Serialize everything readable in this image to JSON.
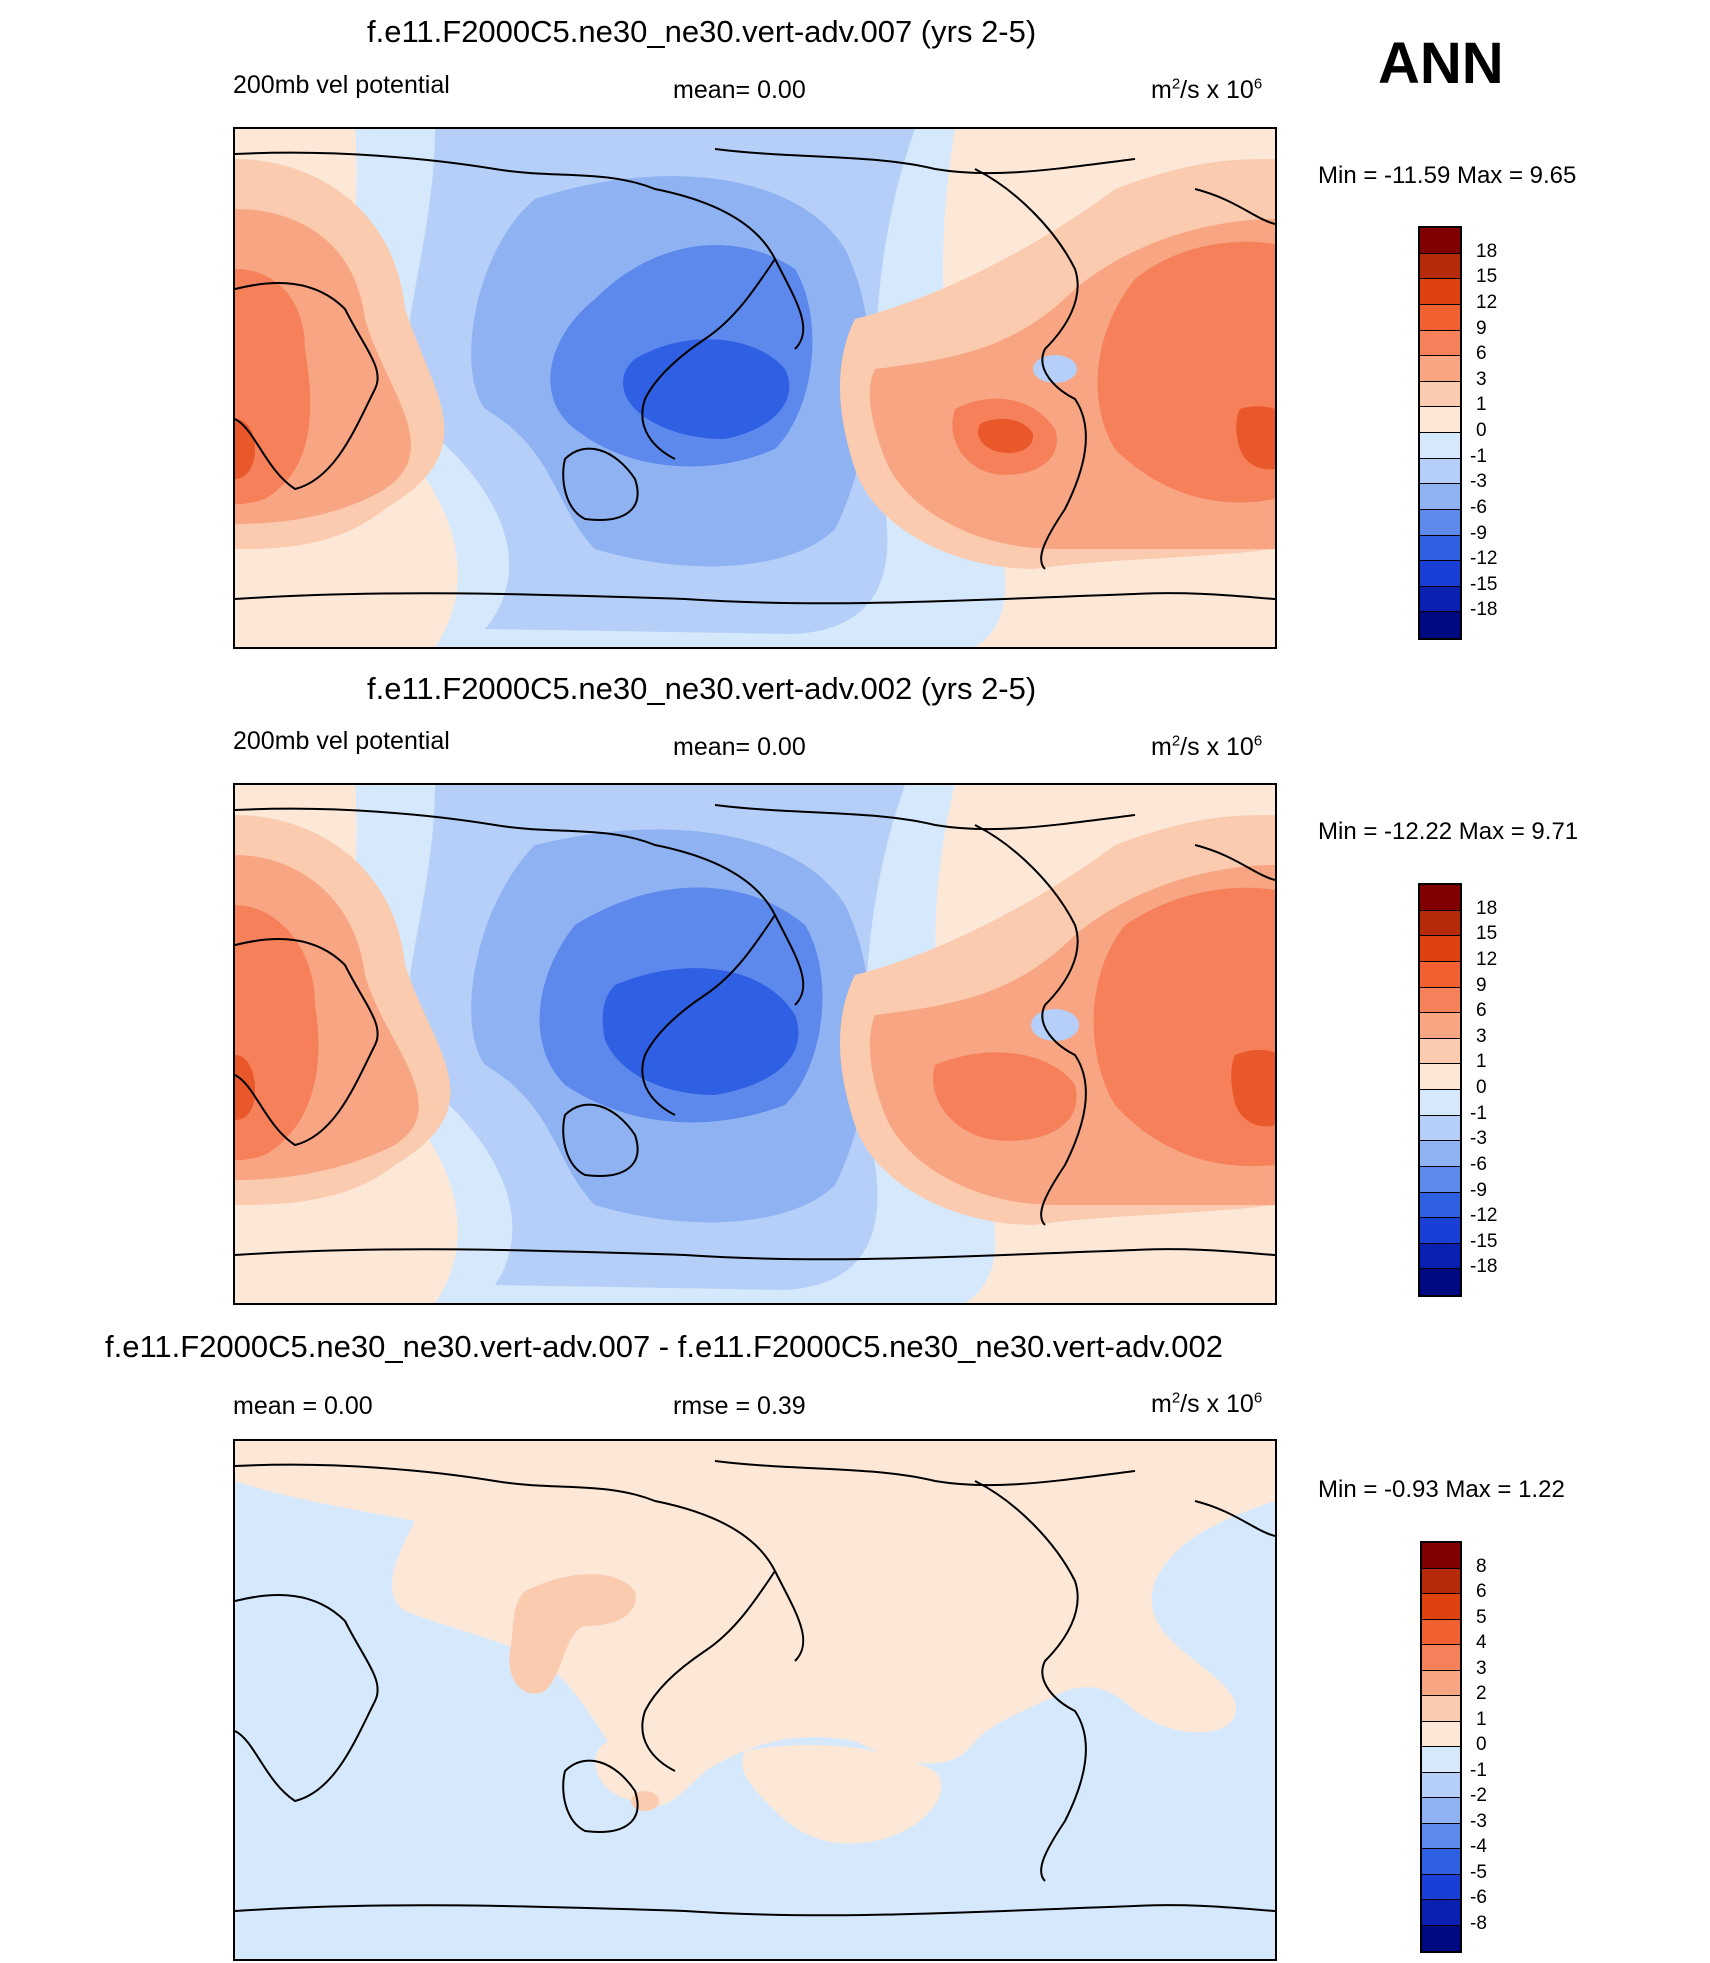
{
  "season": "ANN",
  "units": {
    "base": "m",
    "exp1": "2",
    "mid": "/s x 10",
    "exp2": "6"
  },
  "panels": [
    {
      "title": "f.e11.F2000C5.ne30_ne30.vert-adv.007 (yrs 2-5)",
      "left_label": "200mb vel potential",
      "center_label": "mean=   0.00",
      "minmax": "Min = -11.59 Max =   9.65"
    },
    {
      "title": "f.e11.F2000C5.ne30_ne30.vert-adv.002 (yrs 2-5)",
      "left_label": "200mb vel potential",
      "center_label": "mean=   0.00",
      "minmax": "Min = -12.22 Max =   9.71"
    },
    {
      "title": "f.e11.F2000C5.ne30_ne30.vert-adv.007 - f.e11.F2000C5.ne30_ne30.vert-adv.002",
      "left_label": "mean =   0.00",
      "center_label": "rmse =   0.39",
      "minmax": "Min =  -0.93 Max =   1.22"
    }
  ],
  "chart_data": [
    {
      "type": "heatmap",
      "title": "f.e11.F2000C5.ne30_ne30.vert-adv.007 (yrs 2-5)",
      "variable": "200mb vel potential",
      "mean": 0.0,
      "min": -11.59,
      "max": 9.65,
      "levels": [
        "18",
        "15",
        "12",
        "9",
        "6",
        "3",
        "1",
        "0",
        "-1",
        "-3",
        "-6",
        "-9",
        "-12",
        "-15",
        "-18"
      ]
    },
    {
      "type": "heatmap",
      "title": "f.e11.F2000C5.ne30_ne30.vert-adv.002 (yrs 2-5)",
      "variable": "200mb vel potential",
      "mean": 0.0,
      "min": -12.22,
      "max": 9.71,
      "levels": [
        "18",
        "15",
        "12",
        "9",
        "6",
        "3",
        "1",
        "0",
        "-1",
        "-3",
        "-6",
        "-9",
        "-12",
        "-15",
        "-18"
      ]
    },
    {
      "type": "heatmap",
      "title": "f.e11.F2000C5.ne30_ne30.vert-adv.007 - f.e11.F2000C5.ne30_ne30.vert-adv.002",
      "mean": 0.0,
      "rmse": 0.39,
      "min": -0.93,
      "max": 1.22,
      "levels": [
        "8",
        "6",
        "5",
        "4",
        "3",
        "2",
        "1",
        "0",
        "-1",
        "-2",
        "-3",
        "-4",
        "-5",
        "-6",
        "-8"
      ]
    }
  ],
  "colorbar_colors": [
    "#800000",
    "#b52a08",
    "#e0420f",
    "#f06030",
    "#f5805a",
    "#f8a583",
    "#fbcbb0",
    "#fde8d8",
    "#d6e8fb",
    "#b5cff8",
    "#8fb2f2",
    "#5d88ec",
    "#2f5fe3",
    "#1a3fd6",
    "#0a20b0",
    "#000a80"
  ],
  "colors": {
    "pos3": "#f5805a",
    "pos2": "#f8a583",
    "pos1": "#fbcbb0",
    "pos0": "#fde8d8",
    "neg0": "#d6e8fb",
    "neg1": "#b5cff8",
    "neg2": "#8fb2f2",
    "neg3": "#5d88ec",
    "neg4": "#2f5fe3",
    "pos4": "#e9582a"
  }
}
